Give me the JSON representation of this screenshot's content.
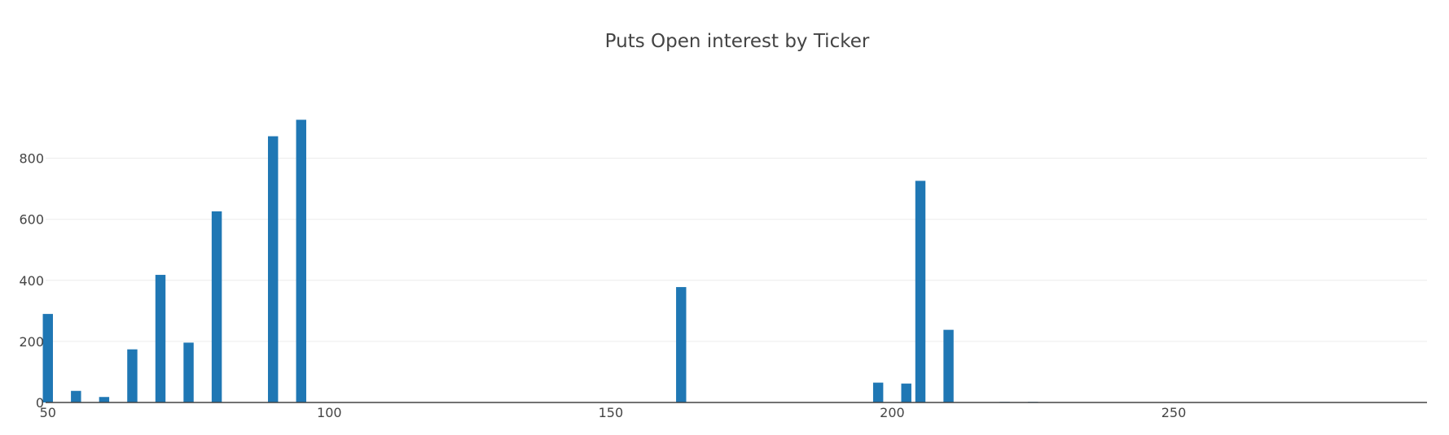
{
  "chart_data": {
    "type": "bar",
    "title": "Puts Open interest by Ticker",
    "xlabel": "",
    "ylabel": "",
    "x": [
      50,
      55,
      60,
      65,
      70,
      75,
      80,
      90,
      95,
      162.5,
      197.5,
      202.5,
      205,
      210,
      220,
      225
    ],
    "values": [
      290,
      38,
      18,
      174,
      418,
      196,
      626,
      872,
      926,
      378,
      65,
      62,
      726,
      238,
      2,
      2
    ],
    "xlim": [
      49.6,
      295
    ],
    "ylim": [
      0,
      1020
    ],
    "x_ticks": [
      50,
      100,
      150,
      200,
      250
    ],
    "y_ticks": [
      0,
      200,
      400,
      600,
      800
    ],
    "bar_width": 1.8,
    "bar_color": "#1f77b4",
    "grid": "horizontal",
    "legend": "none"
  }
}
